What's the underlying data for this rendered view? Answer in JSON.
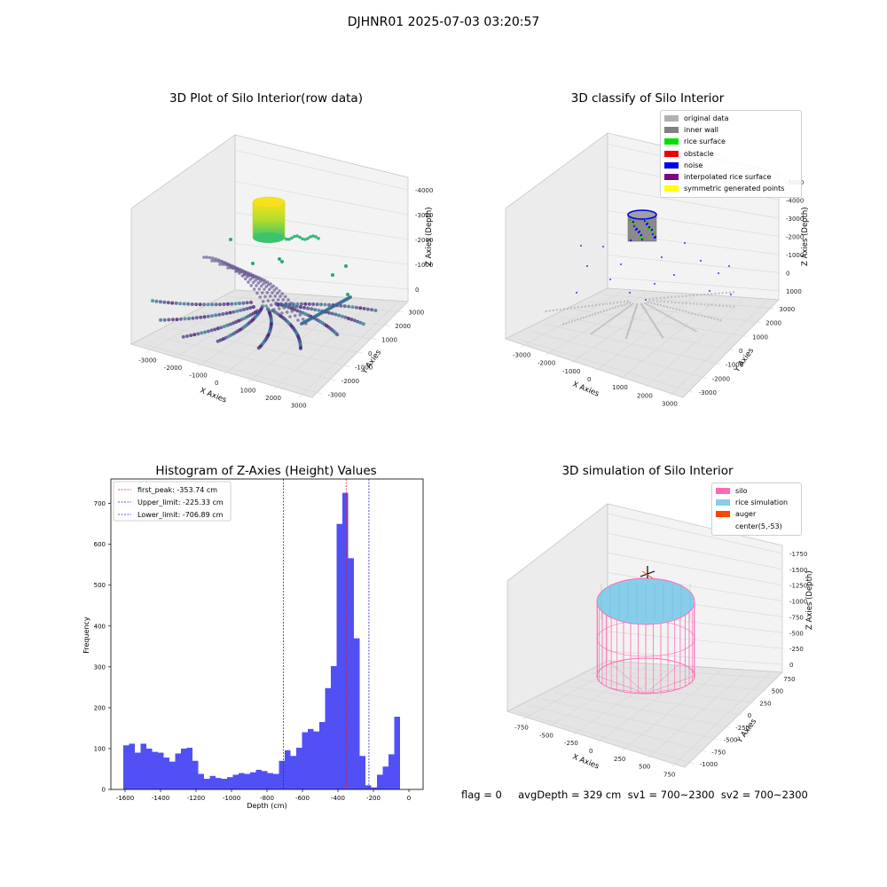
{
  "suptitle": "DJHNR01 2025-07-03 03:20:57",
  "panels": {
    "raw_title": "3D Plot of Silo Interior(row data)",
    "classify_title": "3D classify of Silo Interior",
    "hist_title": "Histogram of Z-Axies (Height) Values",
    "sim_title": "3D simulation of Silo Interior"
  },
  "axes3d": {
    "raw": {
      "xlabel": "X Axies",
      "ylabel": "Y Axies",
      "zlabel": "Z Axies (Depth)",
      "xticks": [
        "-3000",
        "-2000",
        "-1000",
        "0",
        "1000",
        "2000",
        "3000"
      ],
      "yticks": [
        "-3000",
        "-2000",
        "-1000",
        "0",
        "1000",
        "2000",
        "3000"
      ],
      "zticks": [
        "0",
        "-1000",
        "-2000",
        "-3000",
        "-4000"
      ]
    },
    "classify": {
      "xlabel": "X Axies",
      "ylabel": "Y Axies",
      "zlabel": "Z Axies (Depth)",
      "xticks": [
        "-3000",
        "-2000",
        "-1000",
        "0",
        "1000",
        "2000",
        "3000"
      ],
      "yticks": [
        "-3000",
        "-2000",
        "-1000",
        "0",
        "1000",
        "2000",
        "3000"
      ],
      "zticks": [
        "1000",
        "0",
        "-1000",
        "-2000",
        "-3000",
        "-4000",
        "-5000"
      ]
    },
    "sim": {
      "xlabel": "X Axies",
      "ylabel": "Y Axies",
      "zlabel": "Z Axies (Depth)",
      "xticks": [
        "-750",
        "-500",
        "-250",
        "0",
        "250",
        "500",
        "750"
      ],
      "yticks": [
        "-1000",
        "-750",
        "-500",
        "-250",
        "0",
        "250",
        "500",
        "750"
      ],
      "zticks": [
        "0",
        "-250",
        "-500",
        "-750",
        "-1000",
        "-1250",
        "-1500",
        "-1750"
      ]
    }
  },
  "legends": {
    "classify": [
      {
        "label": "original data",
        "color": "#b0b0b0"
      },
      {
        "label": "inner wall",
        "color": "#808080"
      },
      {
        "label": "rice surface",
        "color": "#00e000"
      },
      {
        "label": "obstacle",
        "color": "#ee0000"
      },
      {
        "label": "noise",
        "color": "#0000ee"
      },
      {
        "label": "interpolated rice surface",
        "color": "#800080"
      },
      {
        "label": "symmetric generated points",
        "color": "#ffff00"
      }
    ],
    "sim": [
      {
        "label": "silo",
        "color": "#ff69b4"
      },
      {
        "label": "rice simulation",
        "color": "#87ceeb"
      },
      {
        "label": "auger",
        "color": "#ff4500"
      },
      {
        "label": "center(5,-53)",
        "color": ""
      }
    ]
  },
  "chart_data": {
    "type": "bar",
    "title": "Histogram of Z-Axies (Height) Values",
    "xlabel": "Depth (cm)",
    "ylabel": "Frequency",
    "xlim": [
      -1680,
      80
    ],
    "ylim": [
      0,
      760
    ],
    "bin_width": 32.5,
    "bin_start": -1610,
    "xticks": [
      -1600,
      -1400,
      -1200,
      -1000,
      -800,
      -600,
      -400,
      -200,
      0
    ],
    "yticks": [
      0,
      100,
      200,
      300,
      400,
      500,
      600,
      700
    ],
    "bar_color": "#5050f5",
    "values": [
      108,
      112,
      90,
      112,
      100,
      92,
      90,
      78,
      68,
      88,
      100,
      102,
      70,
      38,
      26,
      33,
      28,
      26,
      30,
      36,
      40,
      38,
      42,
      48,
      45,
      40,
      38,
      70,
      96,
      82,
      102,
      140,
      148,
      142,
      165,
      248,
      302,
      650,
      726,
      566,
      370,
      82,
      10,
      5,
      36,
      56,
      86,
      178
    ],
    "vlines": [
      {
        "label": "first_peak: -353.74 cm",
        "x": -353.74,
        "color": "#e02020"
      },
      {
        "label": "Upper_limit: -225.33 cm",
        "x": -225.33,
        "color": "#2020d0"
      },
      {
        "label": "Lower_limit: -706.89 cm",
        "x": -706.89,
        "color": "#2020d0"
      }
    ]
  },
  "footer": "flag = 0     avgDepth = 329 cm  sv1 = 700~2300  sv2 = 700~2300"
}
